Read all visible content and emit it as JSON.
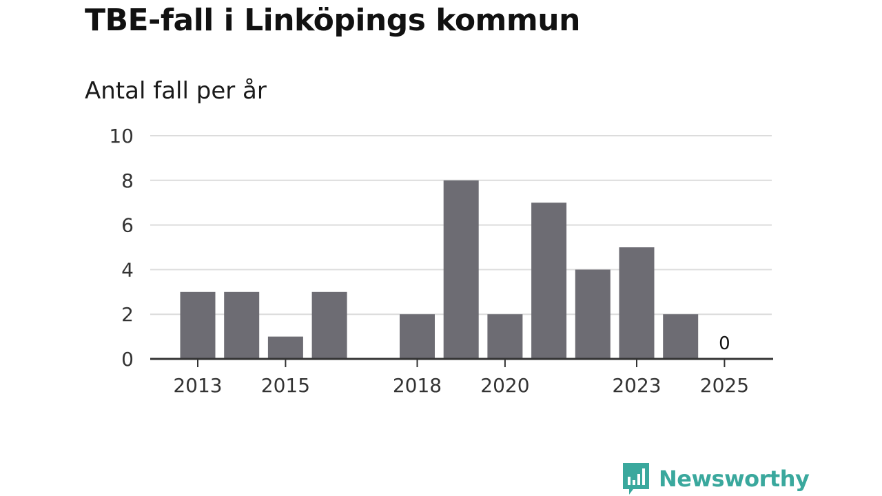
{
  "page": {
    "title": "TBE-fall i Linköpings kommun",
    "subtitle": "Antal fall per år"
  },
  "brand": {
    "name": "Newsworthy",
    "color": "#3aa89d"
  },
  "colors": {
    "bar": "#6d6c73",
    "grid": "#dcdcdc",
    "axis": "#333333",
    "text": "#333333"
  },
  "chart_data": {
    "type": "bar",
    "title": "TBE-fall i Linköpings kommun",
    "subtitle": "Antal fall per år",
    "xlabel": "",
    "ylabel": "",
    "categories": [
      "2013",
      "2014",
      "2015",
      "2016",
      "2017",
      "2018",
      "2019",
      "2020",
      "2021",
      "2022",
      "2023",
      "2024",
      "2025"
    ],
    "values": [
      3,
      3,
      1,
      3,
      null,
      2,
      8,
      2,
      7,
      4,
      5,
      2,
      0
    ],
    "ylim": [
      0,
      10
    ],
    "yticks": [
      0,
      2,
      4,
      6,
      8,
      10
    ],
    "xticks": [
      "2013",
      "2015",
      "2018",
      "2020",
      "2023",
      "2025"
    ],
    "data_labels": [
      {
        "category": "2025",
        "text": "0"
      }
    ],
    "grid": true
  }
}
